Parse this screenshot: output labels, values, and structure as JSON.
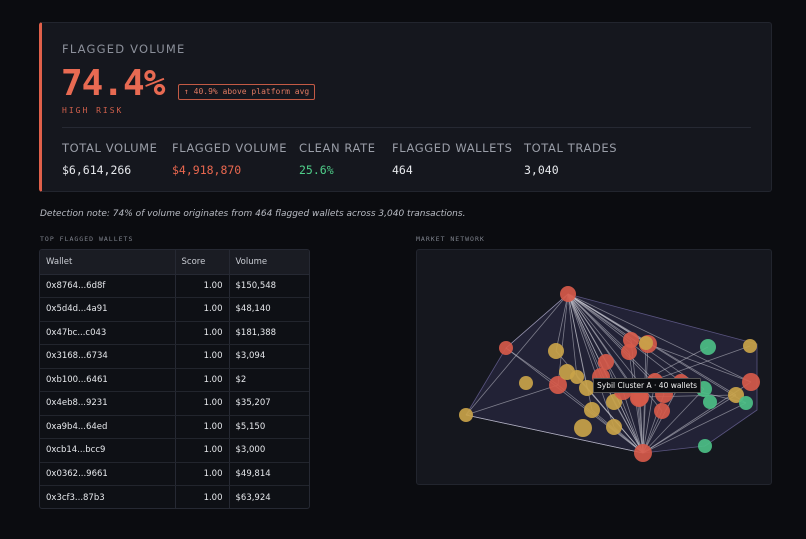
{
  "hero": {
    "label": "FLAGGED VOLUME",
    "value": "74.4%",
    "badge": "↑ 40.9% above platform avg",
    "risk": "HIGH RISK",
    "accent_color": "#e86a52"
  },
  "stats": [
    {
      "label": "TOTAL VOLUME",
      "value": "$6,614,266",
      "color": "#e6e8ec"
    },
    {
      "label": "FLAGGED VOLUME",
      "value": "$4,918,870",
      "color": "#e8674f"
    },
    {
      "label": "CLEAN RATE",
      "value": "25.6%",
      "color": "#4fcf8a"
    },
    {
      "label": "FLAGGED WALLETS",
      "value": "464",
      "color": "#e6e8ec"
    },
    {
      "label": "TOTAL TRADES",
      "value": "3,040",
      "color": "#e6e8ec"
    }
  ],
  "note": "Detection note: 74% of volume originates from 464 flagged wallets across 3,040 transactions.",
  "table": {
    "title": "TOP FLAGGED WALLETS",
    "headers": [
      "Wallet",
      "Score",
      "Volume"
    ],
    "rows": [
      [
        "0x8764...6d8f",
        "1.00",
        "$150,548"
      ],
      [
        "0x5d4d...4a91",
        "1.00",
        "$48,140"
      ],
      [
        "0x47bc...c043",
        "1.00",
        "$181,388"
      ],
      [
        "0x3168...6734",
        "1.00",
        "$3,094"
      ],
      [
        "0xb100...6461",
        "1.00",
        "$2"
      ],
      [
        "0x4eb8...9231",
        "1.00",
        "$35,207"
      ],
      [
        "0xa9b4...64ed",
        "1.00",
        "$5,150"
      ],
      [
        "0xcb14...bcc9",
        "1.00",
        "$3,000"
      ],
      [
        "0x0362...9661",
        "1.00",
        "$49,814"
      ],
      [
        "0x3cf3...87b3",
        "1.00",
        "$63,924"
      ]
    ]
  },
  "network": {
    "title": "MARKET NETWORK",
    "tooltip": "Sybil Cluster A · 40 wallets",
    "colors": {
      "flagged": "#d65a4a",
      "suspect": "#c9a349",
      "clean": "#4cbf86",
      "hull": "#2e2b4a",
      "edge": "#c8c8d2"
    }
  }
}
